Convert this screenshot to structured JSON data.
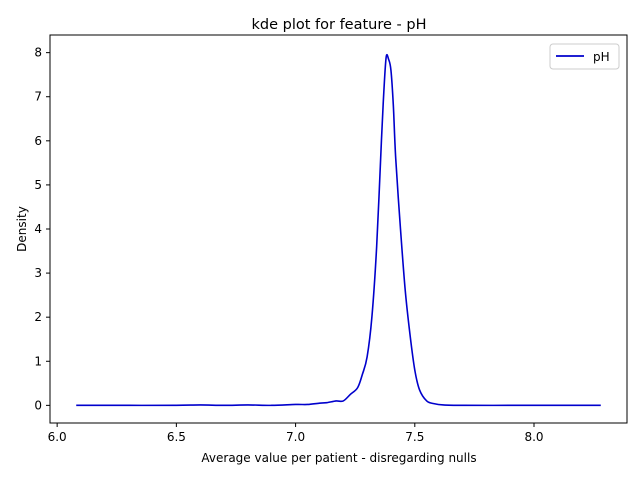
{
  "chart_data": {
    "type": "line",
    "title": "kde plot for feature -  pH",
    "xlabel": "Average value per patient - disregarding nulls",
    "ylabel": "Density",
    "xlim": [
      5.97,
      8.39
    ],
    "ylim": [
      -0.4,
      8.4
    ],
    "xticks": [
      6.0,
      6.5,
      7.0,
      7.5,
      8.0
    ],
    "xtick_labels": [
      "6.0",
      "6.5",
      "7.0",
      "7.5",
      "8.0"
    ],
    "yticks": [
      0,
      1,
      2,
      3,
      4,
      5,
      6,
      7,
      8
    ],
    "ytick_labels": [
      "0",
      "1",
      "2",
      "3",
      "4",
      "5",
      "6",
      "7",
      "8"
    ],
    "grid": false,
    "legend": {
      "position": "top-right"
    },
    "series": [
      {
        "name": "pH",
        "color": "#0000cc",
        "x": [
          6.08,
          6.3,
          6.5,
          6.6,
          6.7,
          6.8,
          6.9,
          7.0,
          7.05,
          7.1,
          7.13,
          7.17,
          7.2,
          7.23,
          7.26,
          7.28,
          7.3,
          7.32,
          7.34,
          7.36,
          7.37,
          7.38,
          7.39,
          7.4,
          7.41,
          7.42,
          7.44,
          7.46,
          7.48,
          7.5,
          7.52,
          7.55,
          7.58,
          7.62,
          7.7,
          7.9,
          8.1,
          8.28
        ],
        "y": [
          0.0,
          0.0,
          0.0,
          0.01,
          0.0,
          0.01,
          0.0,
          0.02,
          0.02,
          0.05,
          0.06,
          0.1,
          0.1,
          0.25,
          0.4,
          0.7,
          1.1,
          2.0,
          3.6,
          6.0,
          7.1,
          7.9,
          7.85,
          7.6,
          6.8,
          5.6,
          4.0,
          2.6,
          1.6,
          0.8,
          0.35,
          0.1,
          0.04,
          0.01,
          0.0,
          0.0,
          0.0,
          0.0
        ]
      }
    ]
  }
}
